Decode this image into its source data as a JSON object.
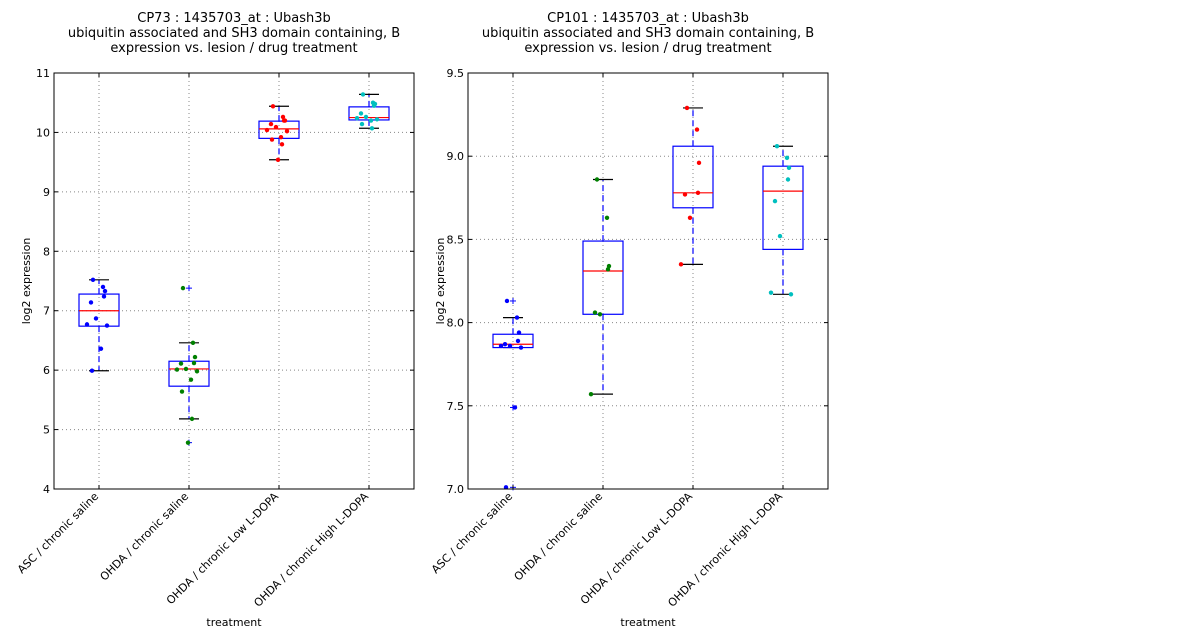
{
  "chart_data": [
    {
      "type": "box",
      "title": [
        "CP73 : 1435703_at : Ubash3b",
        "ubiquitin associated and SH3 domain containing, B",
        "expression vs. lesion / drug treatment"
      ],
      "xlabel": "treatment",
      "ylabel": "log2 expression",
      "ylim": [
        4,
        11
      ],
      "yticks": [
        4,
        5,
        6,
        7,
        8,
        9,
        10,
        11
      ],
      "ytick_labels": [
        "4",
        "5",
        "6",
        "7",
        "8",
        "9",
        "10",
        "11"
      ],
      "grid": true,
      "categories": [
        "ASC / chronic saline",
        "OHDA / chronic saline",
        "OHDA / chronic Low L-DOPA",
        "OHDA / chronic High L-DOPA"
      ],
      "point_colors": [
        "#0000ff",
        "#008000",
        "#ff0000",
        "#00bfbf"
      ],
      "boxes": [
        {
          "q1": 6.74,
          "median": 7.0,
          "q3": 7.28,
          "whisker_low": 5.99,
          "whisker_high": 7.52,
          "outliers": []
        },
        {
          "q1": 5.73,
          "median": 6.02,
          "q3": 6.15,
          "whisker_low": 5.18,
          "whisker_high": 6.46,
          "outliers": [
            7.38,
            4.78
          ]
        },
        {
          "q1": 9.9,
          "median": 10.06,
          "q3": 10.19,
          "whisker_low": 9.54,
          "whisker_high": 10.44,
          "outliers": []
        },
        {
          "q1": 10.21,
          "median": 10.25,
          "q3": 10.43,
          "whisker_low": 10.07,
          "whisker_high": 10.64,
          "outliers": []
        }
      ],
      "points": [
        [
          7.52,
          7.4,
          7.33,
          7.24,
          7.14,
          6.87,
          6.77,
          6.75,
          6.36,
          5.99
        ],
        [
          7.38,
          6.46,
          6.22,
          6.12,
          6.11,
          6.02,
          6.01,
          5.98,
          5.84,
          5.64,
          5.18,
          4.78
        ],
        [
          10.44,
          10.26,
          10.2,
          10.2,
          10.14,
          10.09,
          10.04,
          10.02,
          9.92,
          9.88,
          9.8,
          9.54
        ],
        [
          10.64,
          10.5,
          10.48,
          10.45,
          10.32,
          10.26,
          10.24,
          10.22,
          10.2,
          10.14,
          10.07
        ]
      ]
    },
    {
      "type": "box",
      "title": [
        "CP101 : 1435703_at : Ubash3b",
        "ubiquitin associated and SH3 domain containing, B",
        "expression vs. lesion / drug treatment"
      ],
      "xlabel": "treatment",
      "ylabel": "log2 expression",
      "ylim": [
        7.0,
        9.5
      ],
      "yticks": [
        7.0,
        7.5,
        8.0,
        8.5,
        9.0,
        9.5
      ],
      "ytick_labels": [
        "7.0",
        "7.5",
        "8.0",
        "8.5",
        "9.0",
        "9.5"
      ],
      "grid": true,
      "categories": [
        "ASC / chronic saline",
        "OHDA / chronic saline",
        "OHDA / chronic Low L-DOPA",
        "OHDA / chronic High L-DOPA"
      ],
      "point_colors": [
        "#0000ff",
        "#008000",
        "#ff0000",
        "#00bfbf"
      ],
      "boxes": [
        {
          "q1": 7.85,
          "median": 7.87,
          "q3": 7.93,
          "whisker_low": 7.85,
          "whisker_high": 8.03,
          "outliers": [
            8.13,
            7.49,
            7.01
          ]
        },
        {
          "q1": 8.05,
          "median": 8.31,
          "q3": 8.49,
          "whisker_low": 7.57,
          "whisker_high": 8.86,
          "outliers": []
        },
        {
          "q1": 8.69,
          "median": 8.78,
          "q3": 9.06,
          "whisker_low": 8.35,
          "whisker_high": 9.29,
          "outliers": []
        },
        {
          "q1": 8.44,
          "median": 8.79,
          "q3": 8.94,
          "whisker_low": 8.17,
          "whisker_high": 9.06,
          "outliers": []
        }
      ],
      "points": [
        [
          8.13,
          8.03,
          7.94,
          7.89,
          7.87,
          7.86,
          7.86,
          7.85,
          7.49,
          7.01
        ],
        [
          8.86,
          8.63,
          8.34,
          8.32,
          8.06,
          8.05,
          7.57
        ],
        [
          9.29,
          9.16,
          8.96,
          8.78,
          8.77,
          8.63,
          8.35
        ],
        [
          9.06,
          8.99,
          8.93,
          8.86,
          8.73,
          8.52,
          8.18,
          8.17
        ]
      ]
    }
  ]
}
